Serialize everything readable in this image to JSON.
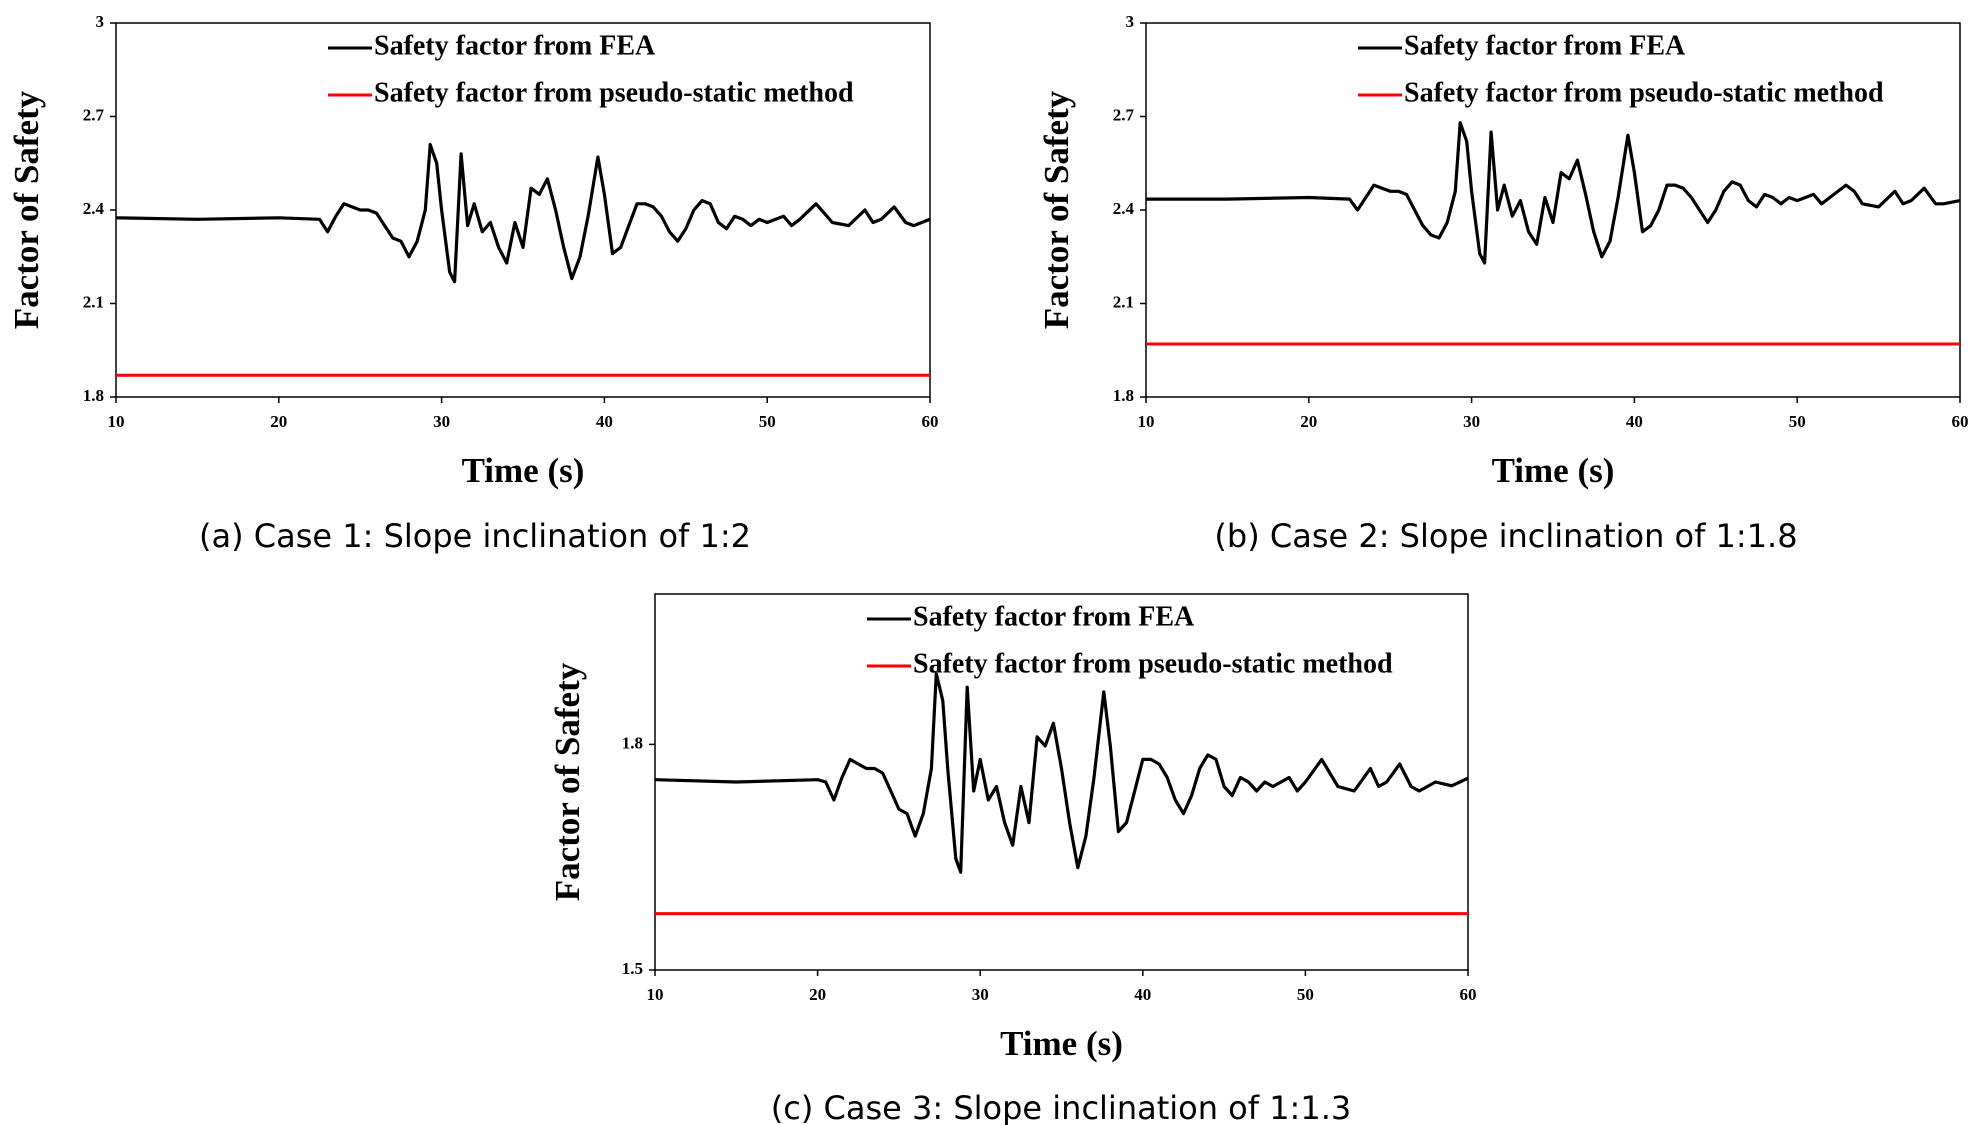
{
  "chart_data": [
    {
      "type": "line",
      "caption": "(a) Case 1: Slope inclination of 1:2",
      "xlabel": "Time (s)",
      "ylabel": "Factor of Safety",
      "xlim": [
        10,
        60
      ],
      "xticks": [
        10,
        20,
        30,
        40,
        50,
        60
      ],
      "ylim": [
        1.8,
        3
      ],
      "yticks": [
        1.8,
        2.1,
        2.4,
        2.7,
        3
      ],
      "series": [
        {
          "name": "Safety factor from FEA",
          "color": "#000000",
          "x": [
            10,
            15,
            20,
            22.5,
            23,
            23.5,
            24,
            24.5,
            25,
            25.5,
            26,
            26.5,
            27,
            27.5,
            28,
            28.5,
            29,
            29.3,
            29.7,
            30,
            30.5,
            30.8,
            31.2,
            31.6,
            32,
            32.5,
            33,
            33.5,
            34,
            34.5,
            35,
            35.5,
            36,
            36.5,
            37,
            37.5,
            38,
            38.5,
            39,
            39.6,
            40,
            40.5,
            41,
            41.5,
            42,
            42.5,
            43,
            43.5,
            44,
            44.5,
            45,
            45.5,
            46,
            46.5,
            47,
            47.5,
            48,
            48.5,
            49,
            49.5,
            50,
            51,
            51.5,
            52,
            53,
            53.5,
            54,
            55,
            56,
            56.5,
            57,
            57.8,
            58.5,
            59,
            60
          ],
          "values": [
            2.375,
            2.37,
            2.375,
            2.37,
            2.33,
            2.38,
            2.42,
            2.41,
            2.4,
            2.4,
            2.39,
            2.35,
            2.31,
            2.3,
            2.25,
            2.3,
            2.4,
            2.61,
            2.55,
            2.4,
            2.2,
            2.17,
            2.58,
            2.35,
            2.42,
            2.33,
            2.36,
            2.28,
            2.23,
            2.36,
            2.28,
            2.47,
            2.45,
            2.5,
            2.4,
            2.28,
            2.18,
            2.25,
            2.38,
            2.57,
            2.45,
            2.26,
            2.28,
            2.35,
            2.42,
            2.42,
            2.41,
            2.38,
            2.33,
            2.3,
            2.34,
            2.4,
            2.43,
            2.42,
            2.36,
            2.34,
            2.38,
            2.37,
            2.35,
            2.37,
            2.36,
            2.38,
            2.35,
            2.37,
            2.42,
            2.39,
            2.36,
            2.35,
            2.4,
            2.36,
            2.37,
            2.41,
            2.36,
            2.35,
            2.37
          ]
        },
        {
          "name": "Safety factor from pseudo-static method",
          "color": "#ff0000",
          "x": [
            10,
            60
          ],
          "values": [
            1.87,
            1.87
          ]
        }
      ]
    },
    {
      "type": "line",
      "caption": "(b) Case 2: Slope inclination of 1:1.8",
      "xlabel": "Time (s)",
      "ylabel": "Factor of Safety",
      "xlim": [
        10,
        60
      ],
      "xticks": [
        10,
        20,
        30,
        40,
        50,
        60
      ],
      "ylim": [
        1.8,
        3
      ],
      "yticks": [
        1.8,
        2.1,
        2.4,
        2.7,
        3
      ],
      "series": [
        {
          "name": "Safety factor from FEA",
          "color": "#000000",
          "x": [
            10,
            15,
            20,
            22.5,
            23,
            23.5,
            24,
            24.5,
            25,
            25.5,
            26,
            26.5,
            27,
            27.5,
            28,
            28.5,
            29,
            29.3,
            29.7,
            30,
            30.5,
            30.8,
            31.2,
            31.6,
            32,
            32.5,
            33,
            33.5,
            34,
            34.5,
            35,
            35.5,
            36,
            36.5,
            37,
            37.5,
            38,
            38.5,
            39,
            39.6,
            40,
            40.5,
            41,
            41.5,
            42,
            42.5,
            43,
            43.5,
            44,
            44.5,
            45,
            45.5,
            46,
            46.5,
            47,
            47.5,
            48,
            48.5,
            49,
            49.5,
            50,
            51,
            51.5,
            52,
            53,
            53.5,
            54,
            55,
            56,
            56.5,
            57,
            57.8,
            58.5,
            59,
            60
          ],
          "values": [
            2.435,
            2.435,
            2.44,
            2.435,
            2.4,
            2.44,
            2.48,
            2.47,
            2.46,
            2.46,
            2.45,
            2.4,
            2.35,
            2.32,
            2.31,
            2.36,
            2.46,
            2.68,
            2.62,
            2.46,
            2.26,
            2.23,
            2.65,
            2.4,
            2.48,
            2.38,
            2.43,
            2.33,
            2.29,
            2.44,
            2.36,
            2.52,
            2.5,
            2.56,
            2.45,
            2.33,
            2.25,
            2.3,
            2.44,
            2.64,
            2.52,
            2.33,
            2.35,
            2.4,
            2.48,
            2.48,
            2.47,
            2.44,
            2.4,
            2.36,
            2.4,
            2.46,
            2.49,
            2.48,
            2.43,
            2.41,
            2.45,
            2.44,
            2.42,
            2.44,
            2.43,
            2.45,
            2.42,
            2.44,
            2.48,
            2.46,
            2.42,
            2.41,
            2.46,
            2.42,
            2.43,
            2.47,
            2.42,
            2.42,
            2.43
          ]
        },
        {
          "name": "Safety factor from pseudo-static method",
          "color": "#ff0000",
          "x": [
            10,
            60
          ],
          "values": [
            1.97,
            1.97
          ]
        }
      ]
    },
    {
      "type": "line",
      "caption": "(c) Case 3: Slope inclination of 1:1.3",
      "xlabel": "Time (s)",
      "ylabel": "Factor of Safety",
      "xlim": [
        10,
        60
      ],
      "xticks": [
        10,
        20,
        30,
        40,
        50,
        60
      ],
      "ylim": [
        1.5,
        2.0
      ],
      "yticks": [
        1.5,
        1.8
      ],
      "series": [
        {
          "name": "Safety factor from FEA",
          "color": "#000000",
          "x": [
            10,
            15,
            20,
            20.5,
            21,
            21.5,
            22,
            22.5,
            23,
            23.5,
            24,
            24.5,
            25,
            25.5,
            26,
            26.5,
            27,
            27.3,
            27.7,
            28,
            28.5,
            28.8,
            29.2,
            29.6,
            30,
            30.5,
            31,
            31.5,
            32,
            32.5,
            33,
            33.5,
            34,
            34.5,
            35,
            35.5,
            36,
            36.5,
            37,
            37.6,
            38,
            38.5,
            39,
            39.5,
            40,
            40.5,
            41,
            41.5,
            42,
            42.5,
            43,
            43.5,
            44,
            44.5,
            45,
            45.5,
            46,
            46.5,
            47,
            47.5,
            48,
            49,
            49.5,
            50,
            51,
            51.5,
            52,
            53,
            54,
            54.5,
            55,
            55.8,
            56.5,
            57,
            58,
            59,
            60
          ],
          "values": [
            1.753,
            1.75,
            1.753,
            1.75,
            1.726,
            1.756,
            1.78,
            1.774,
            1.768,
            1.768,
            1.762,
            1.738,
            1.714,
            1.708,
            1.678,
            1.708,
            1.768,
            1.894,
            1.858,
            1.768,
            1.648,
            1.63,
            1.876,
            1.738,
            1.78,
            1.726,
            1.744,
            1.696,
            1.666,
            1.744,
            1.696,
            1.81,
            1.798,
            1.828,
            1.768,
            1.696,
            1.636,
            1.678,
            1.756,
            1.87,
            1.798,
            1.684,
            1.696,
            1.738,
            1.78,
            1.78,
            1.774,
            1.756,
            1.726,
            1.708,
            1.732,
            1.768,
            1.786,
            1.78,
            1.744,
            1.732,
            1.756,
            1.75,
            1.738,
            1.75,
            1.744,
            1.756,
            1.738,
            1.75,
            1.78,
            1.762,
            1.744,
            1.738,
            1.768,
            1.744,
            1.75,
            1.774,
            1.744,
            1.738,
            1.75,
            1.745,
            1.755
          ]
        },
        {
          "name": "Safety factor from pseudo-static method",
          "color": "#ff0000",
          "x": [
            10,
            60
          ],
          "values": [
            1.575,
            1.575
          ]
        }
      ]
    }
  ]
}
